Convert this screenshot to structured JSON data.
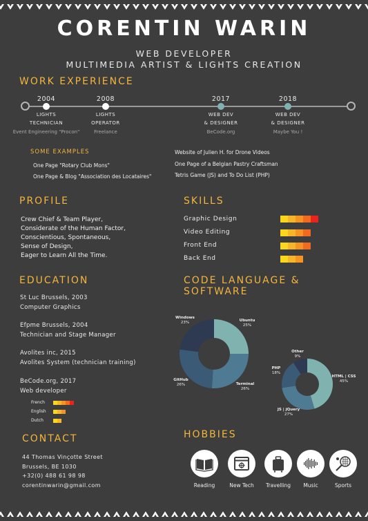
{
  "header": {
    "name": "CORENTIN WARIN",
    "subtitle1": "WEB DEVELOPER",
    "subtitle2": "MULTIMEDIA ARTIST & LIGHTS CREATION"
  },
  "work": {
    "title": "WORK EXPERIENCE",
    "timeline": [
      {
        "year": "2004",
        "role1": "LIGHTS",
        "role2": "TECHNICIAN",
        "place": "Event Engineering \"Procon\""
      },
      {
        "year": "2008",
        "role1": "LIGHTS",
        "role2": "OPERATOR",
        "place": "Freelance"
      },
      {
        "year": "2017",
        "role1": "WEB DEV",
        "role2": "& DESIGNER",
        "place": "BeCode.org"
      },
      {
        "year": "2018",
        "role1": "WEB DEV",
        "role2": "& DESIGNER",
        "place": "Maybe You !"
      }
    ],
    "examples_title": "SOME EXAMPLES",
    "examples_left": [
      "One Page \"Rotary Club Mons\"",
      "One Page & Blog \"Association des Locataires\""
    ],
    "examples_right": [
      "Website of Julien H. for Drone Videos",
      "One Page of a Belgian Pastry Craftsman",
      "Tetris Game (JS) and To Do List (PHP)"
    ]
  },
  "profile": {
    "title": "PROFILE",
    "lines": [
      "Crew Chief & Team Player,",
      "Considerate of the Human Factor,",
      "Conscientious, Spontaneous,",
      "Sense of Design,",
      "Eager to Learn All the Time."
    ]
  },
  "skills": {
    "title": "SKILLS",
    "items": [
      {
        "label": "Graphic Design",
        "level": 5
      },
      {
        "label": "Video Editing",
        "level": 4
      },
      {
        "label": "Front End",
        "level": 4
      },
      {
        "label": "Back End",
        "level": 3
      }
    ],
    "colors": [
      "#f9d71c",
      "#f7b52a",
      "#f59423",
      "#f26a1f",
      "#e8241d"
    ]
  },
  "education": {
    "title": "EDUCATION",
    "entries": [
      {
        "line1": "St Luc Brussels, 2003",
        "line2": "Computer Graphics"
      },
      {
        "line1": "Efpme Brussels, 2004",
        "line2": "Technician and Stage Manager"
      },
      {
        "line1": "Avolites inc, 2015",
        "line2": "Avolites System (technician training)"
      },
      {
        "line1": "BeCode.org, 2017",
        "line2": "Web developer"
      }
    ],
    "languages": [
      {
        "label": "French",
        "level": 5
      },
      {
        "label": "English",
        "level": 3
      },
      {
        "label": "Dutch",
        "level": 2
      }
    ]
  },
  "code": {
    "title1": "CODE LANGUAGE &",
    "title2": "SOFTWARE"
  },
  "chart_data": [
    {
      "type": "pie",
      "categories": [
        "Ubuntu",
        "Terminal",
        "GitHub",
        "Windows"
      ],
      "values": [
        25,
        26,
        26,
        23
      ],
      "colors": [
        "#80b3b0",
        "#4f7a93",
        "#3a5a75",
        "#2e3a52"
      ]
    },
    {
      "type": "pie",
      "categories": [
        "HTML | CSS",
        "JS | jQuery",
        "PHP",
        "Other"
      ],
      "values": [
        45,
        27,
        18,
        9
      ],
      "colors": [
        "#80b3b0",
        "#4f7a93",
        "#3a5a75",
        "#2e3a52"
      ]
    }
  ],
  "contact": {
    "title": "CONTACT",
    "lines": [
      "44 Thomas Vinçotte Street",
      "Brussels, BE 1030",
      "+32(0) 488 61 98 98",
      "corentinwarin@gmail.com"
    ]
  },
  "hobbies": {
    "title": "HOBBIES",
    "items": [
      {
        "label": "Reading",
        "icon": "book-icon"
      },
      {
        "label": "New Tech",
        "icon": "browser-icon"
      },
      {
        "label": "Travelling",
        "icon": "suitcase-icon"
      },
      {
        "label": "Music",
        "icon": "soundwave-icon"
      },
      {
        "label": "Sports",
        "icon": "racket-icon"
      }
    ]
  },
  "colors": {
    "background": "#3d3d3d",
    "accent": "#f4b63c",
    "timeline_node_done": "#ffffff",
    "timeline_node_recent": "#80b3b0"
  }
}
